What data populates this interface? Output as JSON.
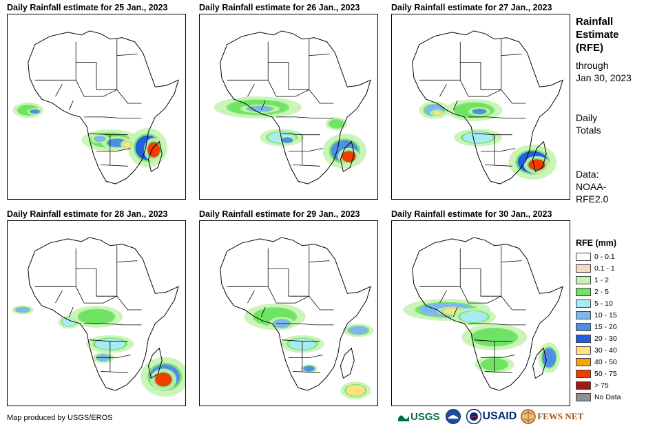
{
  "panels": [
    {
      "title": "Daily Rainfall estimate for 25 Jan., 2023"
    },
    {
      "title": "Daily Rainfall estimate for 26 Jan., 2023"
    },
    {
      "title": "Daily Rainfall estimate for 27 Jan., 2023"
    },
    {
      "title": "Daily Rainfall estimate for 28 Jan., 2023"
    },
    {
      "title": "Daily Rainfall estimate for 29 Jan., 2023"
    },
    {
      "title": "Daily Rainfall estimate for 30 Jan., 2023"
    }
  ],
  "sidebar": {
    "title_lines": [
      "Rainfall",
      "Estimate",
      "(RFE)"
    ],
    "through_lines": [
      "through",
      "Jan 30, 2023"
    ],
    "totals_lines": [
      "Daily",
      "Totals"
    ],
    "data_lines": [
      "Data:",
      "NOAA-",
      "RFE2.0"
    ]
  },
  "legend": {
    "title": "RFE (mm)",
    "items": [
      {
        "label": "0 - 0.1",
        "color": "#ffffff"
      },
      {
        "label": "0.1 - 1",
        "color": "#f1dcbd"
      },
      {
        "label": "1 - 2",
        "color": "#c5f3b1"
      },
      {
        "label": "2 - 5",
        "color": "#6ee364"
      },
      {
        "label": "5 - 10",
        "color": "#a6ecf2"
      },
      {
        "label": "10 - 15",
        "color": "#7fb6ee"
      },
      {
        "label": "15 - 20",
        "color": "#4f8ee5"
      },
      {
        "label": "20 - 30",
        "color": "#1f5fe0"
      },
      {
        "label": "30 - 40",
        "color": "#ffe27a"
      },
      {
        "label": "40 - 50",
        "color": "#f6a600"
      },
      {
        "label": "50 - 75",
        "color": "#f23c00"
      },
      {
        "label": "> 75",
        "color": "#9b1b1b"
      },
      {
        "label": "No Data",
        "color": "#909090"
      }
    ]
  },
  "footer": {
    "credit": "Map produced by USGS/EROS",
    "logos": [
      "USGS",
      "NOAA",
      "USAID",
      "FEWS NET"
    ]
  }
}
